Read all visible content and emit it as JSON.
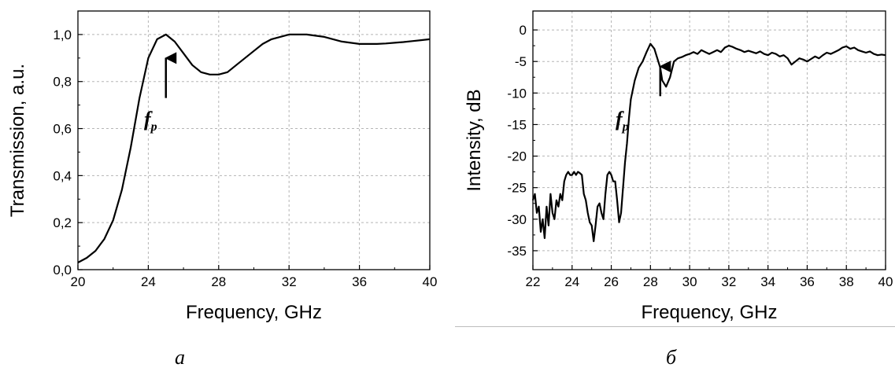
{
  "chart_data": [
    {
      "type": "line",
      "panel_label": "a",
      "xlabel": "Frequency, GHz",
      "ylabel": "Transmission, a.u.",
      "xlim": [
        20,
        40
      ],
      "ylim": [
        0,
        1.1
      ],
      "x_ticks": [
        "20",
        "24",
        "28",
        "32",
        "36",
        "40"
      ],
      "y_ticks": [
        "0,0",
        "0,2",
        "0,4",
        "0,6",
        "0,8",
        "1,0"
      ],
      "grid": true,
      "annotation": {
        "text": "f",
        "subscript": "p",
        "arrow_x": 25
      },
      "series": [
        {
          "x": [
            20,
            20.5,
            21,
            21.5,
            22,
            22.5,
            23,
            23.5,
            24,
            24.5,
            25,
            25.5,
            26,
            26.5,
            27,
            27.5,
            28,
            28.5,
            29,
            29.5,
            30,
            30.5,
            31,
            31.5,
            32,
            32.5,
            33,
            33.5,
            34,
            34.5,
            35,
            35.5,
            36,
            36.5,
            37,
            37.5,
            38,
            38.5,
            39,
            39.5,
            40
          ],
          "y": [
            0.03,
            0.05,
            0.08,
            0.13,
            0.21,
            0.34,
            0.52,
            0.73,
            0.9,
            0.98,
            1.0,
            0.97,
            0.92,
            0.87,
            0.84,
            0.83,
            0.83,
            0.84,
            0.87,
            0.9,
            0.93,
            0.96,
            0.98,
            0.99,
            1.0,
            1.0,
            1.0,
            0.995,
            0.99,
            0.98,
            0.97,
            0.965,
            0.96,
            0.96,
            0.96,
            0.962,
            0.965,
            0.968,
            0.972,
            0.976,
            0.98
          ]
        }
      ]
    },
    {
      "type": "line",
      "panel_label": "б",
      "xlabel": "Frequency, GHz",
      "ylabel": "Intensity, dB",
      "xlim": [
        22,
        40
      ],
      "ylim": [
        -38,
        3
      ],
      "x_ticks": [
        "22",
        "24",
        "26",
        "28",
        "30",
        "32",
        "34",
        "36",
        "38",
        "40"
      ],
      "y_ticks": [
        "-35",
        "-30",
        "-25",
        "-20",
        "-15",
        "-10",
        "-5",
        "0"
      ],
      "grid": true,
      "annotation": {
        "text": "f",
        "subscript": "p",
        "arrow_x": 28.5
      },
      "series": [
        {
          "x": [
            22,
            22.1,
            22.2,
            22.3,
            22.4,
            22.5,
            22.6,
            22.7,
            22.8,
            22.9,
            23,
            23.1,
            23.2,
            23.3,
            23.4,
            23.5,
            23.6,
            23.7,
            23.8,
            23.9,
            24,
            24.1,
            24.2,
            24.3,
            24.4,
            24.5,
            24.6,
            24.7,
            24.8,
            24.9,
            25,
            25.1,
            25.2,
            25.3,
            25.4,
            25.5,
            25.6,
            25.7,
            25.8,
            25.9,
            26,
            26.1,
            26.2,
            26.3,
            26.4,
            26.5,
            26.6,
            26.7,
            26.8,
            26.9,
            27,
            27.2,
            27.4,
            27.6,
            27.8,
            28,
            28.2,
            28.4,
            28.5,
            28.6,
            28.8,
            29,
            29.2,
            29.4,
            29.6,
            29.8,
            30,
            30.2,
            30.4,
            30.6,
            30.8,
            31,
            31.2,
            31.4,
            31.6,
            31.8,
            32,
            32.2,
            32.4,
            32.6,
            32.8,
            33,
            33.2,
            33.4,
            33.6,
            33.8,
            34,
            34.2,
            34.4,
            34.6,
            34.8,
            35,
            35.2,
            35.4,
            35.6,
            35.8,
            36,
            36.2,
            36.4,
            36.6,
            36.8,
            37,
            37.2,
            37.4,
            37.6,
            37.8,
            38,
            38.2,
            38.4,
            38.6,
            38.8,
            39,
            39.2,
            39.4,
            39.6,
            39.8,
            40
          ],
          "y": [
            -27,
            -26,
            -29,
            -28,
            -32,
            -30,
            -33,
            -28,
            -31,
            -26,
            -29,
            -30,
            -27,
            -28,
            -26,
            -27,
            -24,
            -23,
            -22.5,
            -23,
            -23,
            -22.5,
            -23,
            -22.5,
            -22.7,
            -23,
            -26,
            -27,
            -29,
            -30.5,
            -31,
            -33.5,
            -31,
            -28,
            -27.5,
            -29,
            -30,
            -26,
            -23,
            -22.5,
            -23,
            -24,
            -24,
            -27,
            -30.5,
            -29,
            -25,
            -21,
            -18,
            -14,
            -11,
            -8,
            -6,
            -5,
            -3.5,
            -2.2,
            -3,
            -5,
            -6,
            -8,
            -9,
            -7.5,
            -5,
            -4.5,
            -4.3,
            -4,
            -3.8,
            -3.5,
            -3.8,
            -3.2,
            -3.5,
            -3.8,
            -3.5,
            -3.2,
            -3.5,
            -2.8,
            -2.5,
            -2.7,
            -3.0,
            -3.2,
            -3.5,
            -3.3,
            -3.5,
            -3.7,
            -3.4,
            -3.8,
            -4.0,
            -3.6,
            -3.8,
            -4.2,
            -4.0,
            -4.5,
            -5.5,
            -5.0,
            -4.5,
            -4.7,
            -5.0,
            -4.6,
            -4.2,
            -4.5,
            -4.0,
            -3.6,
            -3.8,
            -3.5,
            -3.2,
            -2.8,
            -2.6,
            -3.0,
            -2.8,
            -3.2,
            -3.4,
            -3.6,
            -3.4,
            -3.8,
            -4.0,
            -3.9,
            -4.0
          ]
        }
      ]
    }
  ]
}
